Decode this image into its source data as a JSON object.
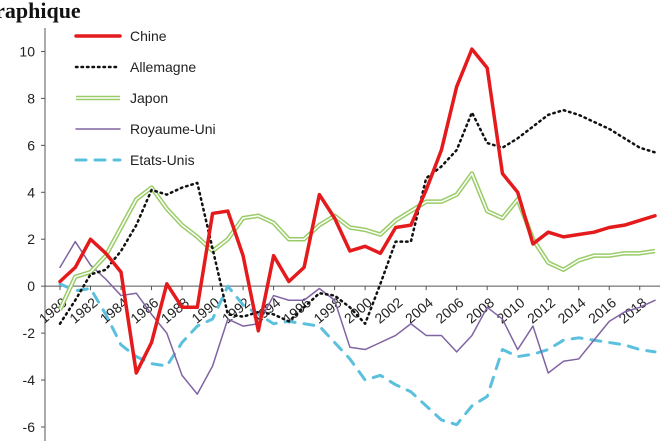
{
  "chart_data": {
    "type": "line",
    "title": "",
    "xlabel": "",
    "ylabel": "",
    "x": [
      1980,
      1981,
      1982,
      1983,
      1984,
      1985,
      1986,
      1987,
      1988,
      1989,
      1990,
      1991,
      1992,
      1993,
      1994,
      1995,
      1996,
      1997,
      1998,
      1999,
      2000,
      2001,
      2002,
      2003,
      2004,
      2005,
      2006,
      2007,
      2008,
      2009,
      2010,
      2011,
      2012,
      2013,
      2014,
      2015,
      2016,
      2017,
      2018,
      2019
    ],
    "x_tick_labels": [
      "1980",
      "1982",
      "1984",
      "1986",
      "1988",
      "1990",
      "1992",
      "1994",
      "1996",
      "1998",
      "2000",
      "2002",
      "2004",
      "2006",
      "2008",
      "2010",
      "2012",
      "2014",
      "2016",
      "2018"
    ],
    "ylim": [
      -6,
      11
    ],
    "y_ticks": [
      -6,
      -4,
      -2,
      0,
      2,
      4,
      6,
      8,
      10
    ],
    "grid": false,
    "legend_position": "top-left",
    "series": [
      {
        "name": "Chine",
        "color": "#e41a1c",
        "style": "solid-thick",
        "values": [
          0.2,
          0.8,
          2.0,
          1.4,
          0.6,
          -3.7,
          -2.4,
          0.1,
          -0.9,
          -0.9,
          3.1,
          3.2,
          1.3,
          -1.9,
          1.3,
          0.2,
          0.8,
          3.9,
          2.9,
          1.5,
          1.7,
          1.4,
          2.5,
          2.6,
          4.1,
          5.8,
          8.5,
          10.1,
          9.3,
          4.8,
          4.0,
          1.8,
          2.3,
          2.1,
          2.2,
          2.3,
          2.5,
          2.6,
          2.8,
          3.0
        ]
      },
      {
        "name": "Allemagne",
        "color": "#111111",
        "style": "dotted",
        "values": [
          -1.6,
          -0.6,
          0.5,
          0.7,
          1.5,
          2.6,
          4.1,
          3.9,
          4.2,
          4.4,
          1.6,
          -1.2,
          -1.3,
          -1.1,
          -1.2,
          -1.5,
          -0.9,
          -0.3,
          -0.4,
          -0.9,
          -1.6,
          0.1,
          1.9,
          1.9,
          4.6,
          5.1,
          5.8,
          7.4,
          6.1,
          5.9,
          6.3,
          6.8,
          7.3,
          7.5,
          7.3,
          7.0,
          6.7,
          6.3,
          5.9,
          5.7
        ]
      },
      {
        "name": "Japon",
        "color": "#99cc66",
        "style": "double",
        "values": [
          -1.0,
          0.4,
          0.6,
          1.3,
          2.5,
          3.7,
          4.2,
          3.3,
          2.6,
          2.1,
          1.5,
          2.0,
          2.9,
          3.0,
          2.7,
          2.0,
          2.0,
          2.6,
          3.0,
          2.5,
          2.4,
          2.2,
          2.8,
          3.2,
          3.6,
          3.6,
          3.9,
          4.8,
          3.2,
          2.9,
          3.7,
          2.0,
          1.0,
          0.7,
          1.1,
          1.3,
          1.3,
          1.4,
          1.4,
          1.5
        ]
      },
      {
        "name": "Royaume-Uni",
        "color": "#8064a2",
        "style": "solid-thin",
        "values": [
          0.8,
          1.9,
          0.9,
          0.3,
          -0.4,
          -0.3,
          -1.2,
          -2.0,
          -3.8,
          -4.6,
          -3.4,
          -1.4,
          -1.7,
          -1.6,
          -0.4,
          -0.6,
          -0.6,
          -0.1,
          -0.6,
          -2.6,
          -2.7,
          -2.4,
          -2.1,
          -1.6,
          -2.1,
          -2.1,
          -2.8,
          -2.1,
          -0.9,
          -1.4,
          -2.7,
          -1.7,
          -3.7,
          -3.2,
          -3.1,
          -2.3,
          -1.5,
          -1.1,
          -0.9,
          -0.6
        ]
      },
      {
        "name": "Etats-Unis",
        "color": "#5bc0de",
        "style": "dashed",
        "values": [
          0.1,
          -0.2,
          -0.1,
          -1.2,
          -2.5,
          -3.0,
          -3.3,
          -3.4,
          -2.4,
          -1.7,
          -1.4,
          0.0,
          -0.8,
          -1.2,
          -1.6,
          -1.5,
          -1.6,
          -1.7,
          -2.4,
          -3.1,
          -4.0,
          -3.8,
          -4.2,
          -4.5,
          -5.1,
          -5.7,
          -5.9,
          -5.1,
          -4.7,
          -2.7,
          -3.0,
          -2.9,
          -2.7,
          -2.3,
          -2.2,
          -2.3,
          -2.4,
          -2.5,
          -2.7,
          -2.8
        ]
      }
    ]
  },
  "header_fragment": "Graphique"
}
